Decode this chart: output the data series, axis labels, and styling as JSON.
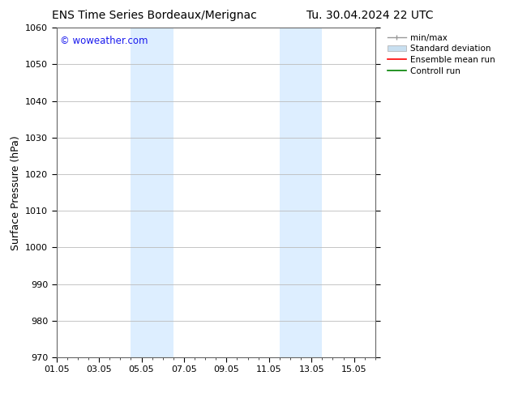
{
  "title_left": "ENS Time Series Bordeaux/Merignac",
  "title_right": "Tu. 30.04.2024 22 UTC",
  "ylabel": "Surface Pressure (hPa)",
  "ylim": [
    970,
    1060
  ],
  "yticks": [
    970,
    980,
    990,
    1000,
    1010,
    1020,
    1030,
    1040,
    1050,
    1060
  ],
  "xtick_labels": [
    "01.05",
    "03.05",
    "05.05",
    "07.05",
    "09.05",
    "11.05",
    "13.05",
    "15.05"
  ],
  "xtick_positions": [
    0,
    2,
    4,
    6,
    8,
    10,
    12,
    14
  ],
  "xlim": [
    0,
    15
  ],
  "shaded_bands": [
    {
      "x_start": 3.5,
      "x_end": 5.5,
      "color": "#ddeeff"
    },
    {
      "x_start": 10.5,
      "x_end": 12.5,
      "color": "#ddeeff"
    }
  ],
  "watermark_text": "© woweather.com",
  "watermark_color": "#1a1aee",
  "bg_color": "#ffffff",
  "plot_bg_color": "#ffffff",
  "grid_color": "#bbbbbb",
  "title_fontsize": 10,
  "tick_fontsize": 8,
  "ylabel_fontsize": 9,
  "legend_labels": [
    "min/max",
    "Standard deviation",
    "Ensemble mean run",
    "Controll run"
  ],
  "legend_colors": [
    "#aaaaaa",
    "#c8dff0",
    "#ff0000",
    "#008000"
  ]
}
